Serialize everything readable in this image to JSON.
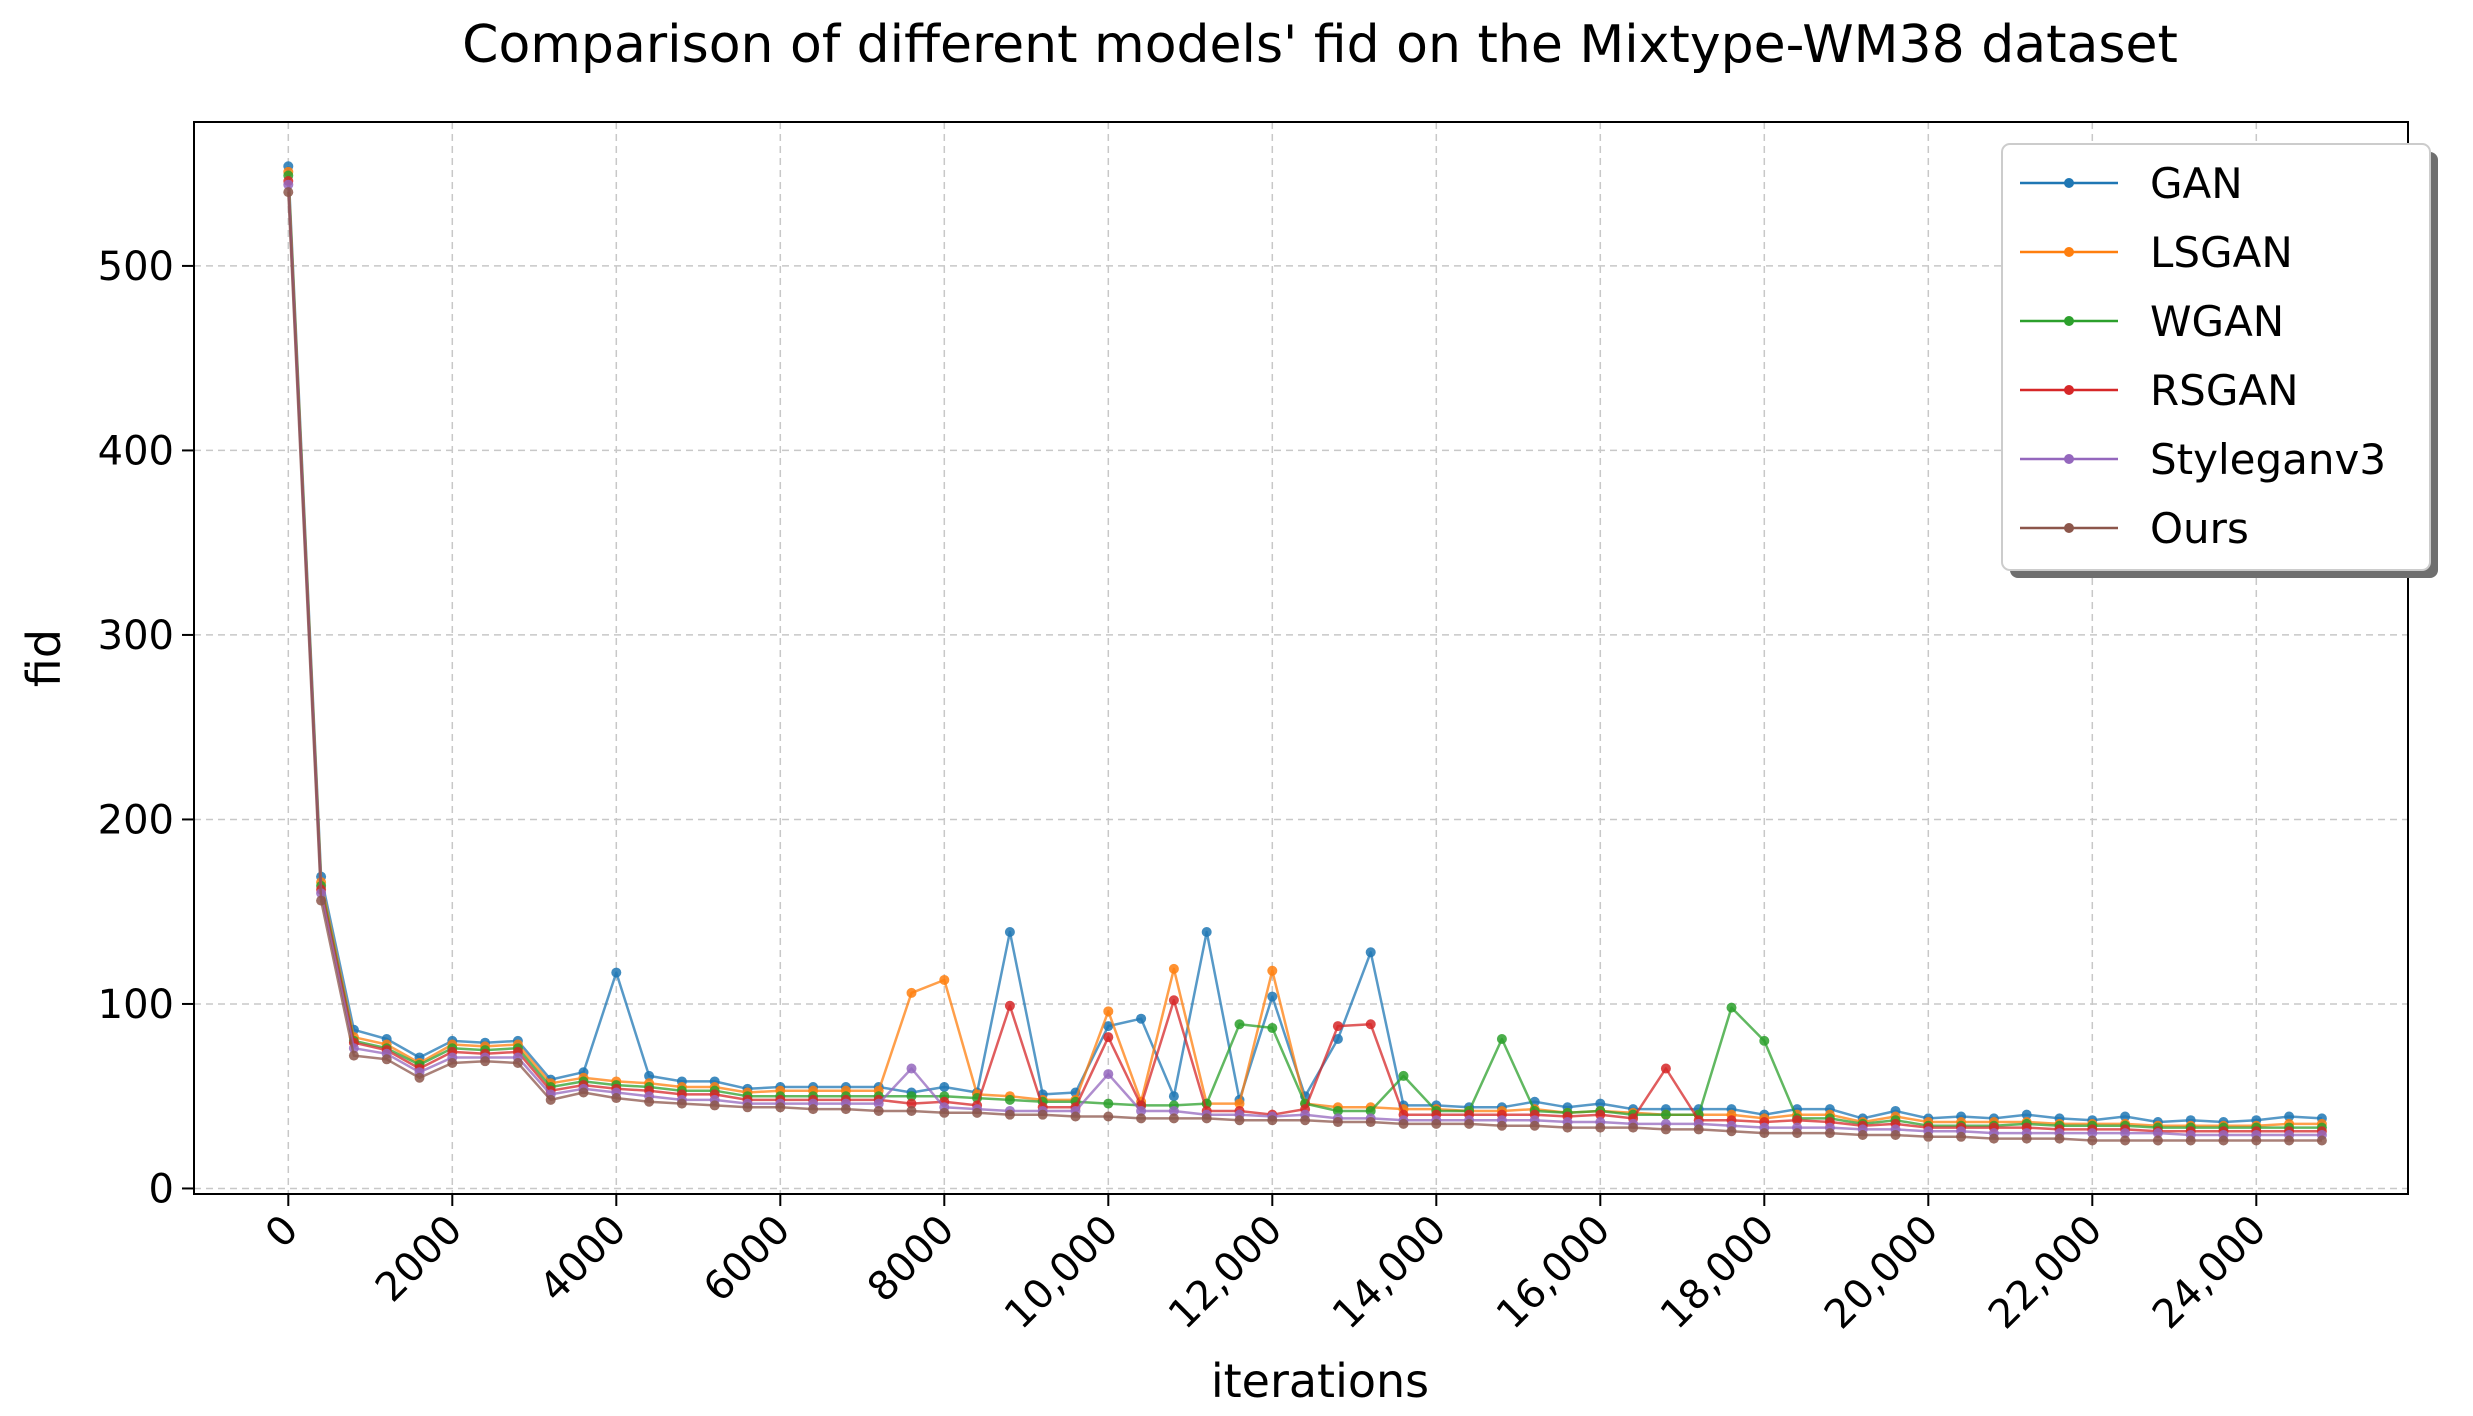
{
  "chart_data": {
    "type": "line",
    "title": "Comparison of different models' fid on the Mixtype-WM38 dataset",
    "xlabel": "iterations",
    "ylabel": "fid",
    "xlim": [
      -1150,
      25850
    ],
    "ylim": [
      -3,
      578
    ],
    "xticks": [
      0,
      2000,
      4000,
      6000,
      8000,
      10000,
      12000,
      14000,
      16000,
      18000,
      20000,
      22000,
      24000
    ],
    "xtick_labels": [
      "0",
      "2000",
      "4000",
      "6000",
      "8000",
      "10,000",
      "12,000",
      "14,000",
      "16,000",
      "18,000",
      "20,000",
      "22,000",
      "24,000"
    ],
    "yticks": [
      0,
      100,
      200,
      300,
      400,
      500
    ],
    "ytick_labels": [
      "0",
      "100",
      "200",
      "300",
      "400",
      "500"
    ],
    "grid": true,
    "legend_position": "top-right",
    "x": [
      0,
      400,
      800,
      1200,
      1600,
      2000,
      2400,
      2800,
      3200,
      3600,
      4000,
      4400,
      4800,
      5200,
      5600,
      6000,
      6400,
      6800,
      7200,
      7600,
      8000,
      8400,
      8800,
      9200,
      9600,
      10000,
      10400,
      10800,
      11200,
      11600,
      12000,
      12400,
      12800,
      13200,
      13600,
      14000,
      14400,
      14800,
      15200,
      15600,
      16000,
      16400,
      16800,
      17200,
      17600,
      18000,
      18400,
      18800,
      19200,
      19600,
      20000,
      20400,
      20800,
      21200,
      21600,
      22000,
      22400,
      22800,
      23200,
      23600,
      24000,
      24400,
      24800
    ],
    "series": [
      {
        "name": "GAN",
        "color": "#1f77b4",
        "values": [
          554,
          169,
          86,
          81,
          71,
          80,
          79,
          80,
          59,
          63,
          117,
          61,
          58,
          58,
          54,
          55,
          55,
          55,
          55,
          52,
          55,
          52,
          139,
          51,
          52,
          88,
          92,
          50,
          139,
          48,
          104,
          50,
          81,
          128,
          45,
          45,
          44,
          44,
          47,
          44,
          46,
          43,
          43,
          43,
          43,
          40,
          43,
          43,
          38,
          42,
          38,
          39,
          38,
          40,
          38,
          37,
          39,
          36,
          37,
          36,
          37,
          39,
          38
        ]
      },
      {
        "name": "LSGAN",
        "color": "#ff7f0e",
        "values": [
          551,
          166,
          82,
          78,
          68,
          78,
          77,
          78,
          57,
          60,
          58,
          57,
          55,
          55,
          52,
          53,
          53,
          53,
          53,
          106,
          113,
          51,
          50,
          48,
          48,
          96,
          47,
          119,
          46,
          46,
          118,
          46,
          44,
          44,
          43,
          43,
          42,
          42,
          43,
          41,
          42,
          41,
          40,
          40,
          40,
          38,
          40,
          40,
          36,
          39,
          36,
          36,
          36,
          36,
          35,
          35,
          35,
          34,
          34,
          34,
          34,
          35,
          35
        ]
      },
      {
        "name": "WGAN",
        "color": "#2ca02c",
        "values": [
          549,
          164,
          80,
          76,
          67,
          76,
          75,
          76,
          55,
          58,
          56,
          55,
          53,
          53,
          50,
          50,
          50,
          50,
          50,
          50,
          50,
          49,
          48,
          47,
          47,
          46,
          45,
          45,
          46,
          89,
          87,
          46,
          42,
          42,
          61,
          42,
          42,
          81,
          42,
          41,
          42,
          40,
          40,
          40,
          98,
          80,
          38,
          38,
          35,
          37,
          34,
          34,
          34,
          35,
          34,
          34,
          34,
          33,
          33,
          33,
          33,
          33,
          33
        ]
      },
      {
        "name": "RSGAN",
        "color": "#d62728",
        "values": [
          546,
          162,
          79,
          75,
          65,
          74,
          73,
          74,
          53,
          56,
          54,
          53,
          51,
          51,
          48,
          48,
          48,
          48,
          48,
          46,
          47,
          45,
          99,
          44,
          44,
          82,
          45,
          102,
          42,
          42,
          40,
          43,
          88,
          89,
          40,
          40,
          40,
          40,
          40,
          39,
          40,
          38,
          65,
          37,
          37,
          36,
          37,
          36,
          34,
          35,
          33,
          33,
          33,
          33,
          32,
          32,
          32,
          31,
          31,
          31,
          31,
          31,
          31
        ]
      },
      {
        "name": "Styleganv3",
        "color": "#9467bd",
        "values": [
          544,
          160,
          76,
          73,
          63,
          71,
          71,
          71,
          51,
          54,
          52,
          50,
          48,
          48,
          46,
          46,
          46,
          46,
          46,
          65,
          44,
          43,
          42,
          42,
          42,
          62,
          42,
          42,
          40,
          40,
          39,
          40,
          38,
          38,
          37,
          37,
          37,
          37,
          37,
          36,
          36,
          35,
          35,
          35,
          34,
          33,
          33,
          33,
          32,
          32,
          31,
          31,
          30,
          30,
          30,
          30,
          30,
          30,
          29,
          29,
          29,
          29,
          29
        ]
      },
      {
        "name": "Ours",
        "color": "#8c564b",
        "values": [
          540,
          156,
          72,
          70,
          60,
          68,
          69,
          68,
          48,
          52,
          49,
          47,
          46,
          45,
          44,
          44,
          43,
          43,
          42,
          42,
          41,
          41,
          40,
          40,
          39,
          39,
          38,
          38,
          38,
          37,
          37,
          37,
          36,
          36,
          35,
          35,
          35,
          34,
          34,
          33,
          33,
          33,
          32,
          32,
          31,
          30,
          30,
          30,
          29,
          29,
          28,
          28,
          27,
          27,
          27,
          26,
          26,
          26,
          26,
          26,
          26,
          26,
          26
        ]
      }
    ]
  }
}
